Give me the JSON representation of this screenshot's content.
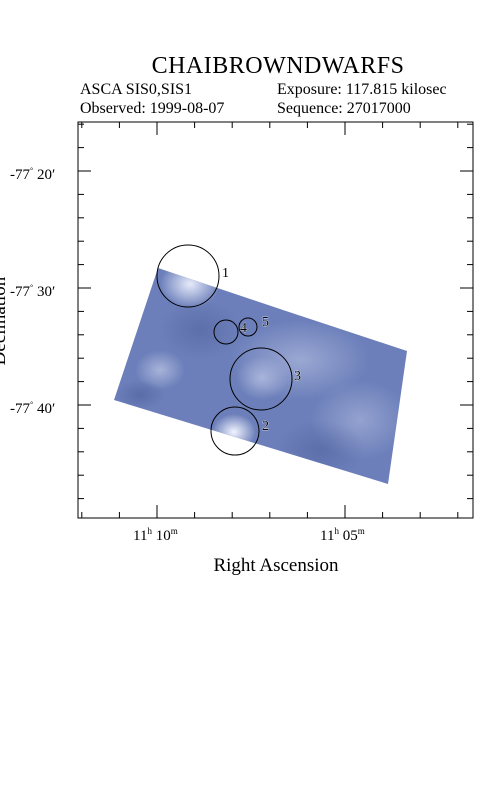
{
  "header": {
    "title": "CHAIBROWNDWARFS",
    "instrument": "ASCA SIS0,SIS1",
    "exposure": "Exposure: 117.815 kilosec",
    "observed": "Observed: 1999-08-07",
    "sequence": "Sequence: 27017000"
  },
  "axes": {
    "xlabel": "Right Ascension",
    "ylabel": "Declination",
    "dec_ticks": [
      {
        "d": "-77",
        "m": "20"
      },
      {
        "d": "-77",
        "m": "30"
      },
      {
        "d": "-77",
        "m": "40"
      }
    ],
    "ra_ticks": [
      {
        "h": "11",
        "m": "10"
      },
      {
        "h": "11",
        "m": "05"
      }
    ]
  },
  "sources": [
    "1",
    "2",
    "3",
    "4",
    "5"
  ],
  "colors": {
    "image_blue": "#6a7db8",
    "image_light": "#b4bfe0",
    "circle": "#000000"
  }
}
